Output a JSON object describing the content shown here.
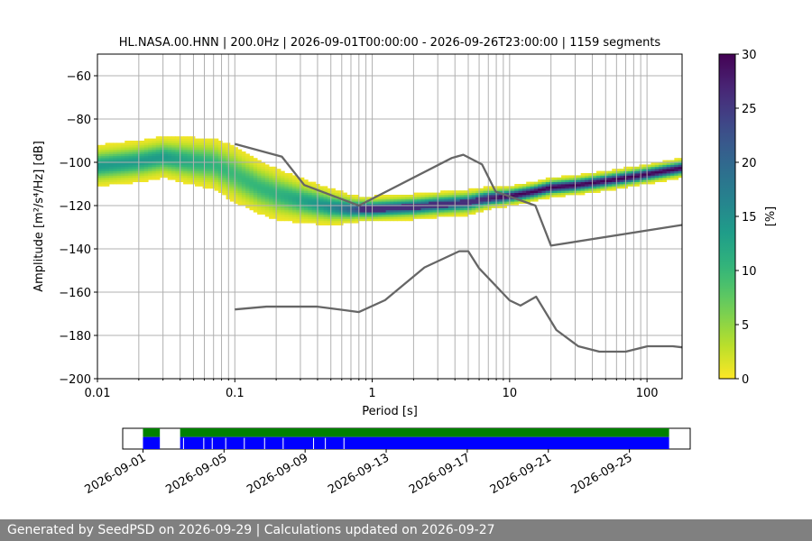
{
  "chart_data": {
    "type": "heatmap",
    "title": "HL.NASA.00.HNN | 200.0Hz | 2026-09-01T00:00:00 - 2026-09-26T23:00:00 | 1159 segments",
    "xlabel": "Period [s]",
    "ylabel_prefix": "Amplitude [",
    "ylabel_unit_tex": "m²/s⁴/Hz",
    "ylabel_suffix": "] [dB]",
    "x_scale": "log",
    "xlim": [
      0.01,
      180
    ],
    "ylim": [
      -200,
      -50
    ],
    "grid": true,
    "x_ticks": [
      {
        "v": 0.01,
        "label": "0.01"
      },
      {
        "v": 0.1,
        "label": "0.1"
      },
      {
        "v": 1,
        "label": "1"
      },
      {
        "v": 10,
        "label": "10"
      },
      {
        "v": 100,
        "label": "100"
      }
    ],
    "y_ticks": [
      {
        "v": -60,
        "label": "−60"
      },
      {
        "v": -80,
        "label": "−80"
      },
      {
        "v": -100,
        "label": "−100"
      },
      {
        "v": -120,
        "label": "−120"
      },
      {
        "v": -140,
        "label": "−140"
      },
      {
        "v": -160,
        "label": "−160"
      },
      {
        "v": -180,
        "label": "−180"
      },
      {
        "v": -200,
        "label": "−200"
      }
    ],
    "colorbar": {
      "label": "[%]",
      "range": [
        0,
        30
      ],
      "ticks": [
        {
          "v": 0,
          "label": "0"
        },
        {
          "v": 5,
          "label": "5"
        },
        {
          "v": 10,
          "label": "10"
        },
        {
          "v": 15,
          "label": "15"
        },
        {
          "v": 20,
          "label": "20"
        },
        {
          "v": 25,
          "label": "25"
        },
        {
          "v": 30,
          "label": "30"
        }
      ],
      "colormap": "viridis_r"
    },
    "psd_mode": [
      [
        0.01,
        -102
      ],
      [
        0.02,
        -100
      ],
      [
        0.03,
        -98
      ],
      [
        0.05,
        -100
      ],
      [
        0.07,
        -101
      ],
      [
        0.1,
        -106
      ],
      [
        0.15,
        -112
      ],
      [
        0.2,
        -115
      ],
      [
        0.3,
        -118
      ],
      [
        0.5,
        -121
      ],
      [
        0.7,
        -122
      ],
      [
        1,
        -122
      ],
      [
        2,
        -121
      ],
      [
        3,
        -120
      ],
      [
        5,
        -119
      ],
      [
        7,
        -117
      ],
      [
        10,
        -116
      ],
      [
        15,
        -114
      ],
      [
        20,
        -112
      ],
      [
        30,
        -111
      ],
      [
        50,
        -109
      ],
      [
        80,
        -107
      ],
      [
        120,
        -105
      ],
      [
        180,
        -103
      ]
    ],
    "psd_spread": [
      [
        0.01,
        7
      ],
      [
        0.03,
        7
      ],
      [
        0.07,
        9
      ],
      [
        0.1,
        10
      ],
      [
        0.2,
        9
      ],
      [
        0.5,
        6
      ],
      [
        0.8,
        4
      ],
      [
        1,
        4
      ],
      [
        2,
        4
      ],
      [
        5,
        4
      ],
      [
        10,
        3
      ],
      [
        30,
        3
      ],
      [
        100,
        3
      ],
      [
        180,
        3
      ]
    ],
    "high_noise_model": {
      "name": "NHNM",
      "points": [
        [
          0.1,
          -91.5
        ],
        [
          0.22,
          -97.4
        ],
        [
          0.32,
          -110.5
        ],
        [
          0.8,
          -120
        ],
        [
          3.8,
          -98
        ],
        [
          4.6,
          -96.5
        ],
        [
          6.3,
          -101
        ],
        [
          7.9,
          -113.5
        ],
        [
          15.4,
          -120
        ],
        [
          20,
          -138.5
        ],
        [
          354.8,
          -126
        ]
      ]
    },
    "low_noise_model": {
      "name": "NLNM",
      "points": [
        [
          0.1,
          -168
        ],
        [
          0.17,
          -166.7
        ],
        [
          0.4,
          -166.7
        ],
        [
          0.8,
          -169.2
        ],
        [
          1.24,
          -163.7
        ],
        [
          2.4,
          -148.6
        ],
        [
          4.3,
          -141.1
        ],
        [
          5,
          -141.1
        ],
        [
          6,
          -149
        ],
        [
          10,
          -163.8
        ],
        [
          12,
          -166.2
        ],
        [
          15.6,
          -162.1
        ],
        [
          21.9,
          -177.5
        ],
        [
          31.6,
          -185
        ],
        [
          45,
          -187.5
        ],
        [
          70,
          -187.5
        ],
        [
          101,
          -185
        ],
        [
          154,
          -185
        ],
        [
          180,
          -185.5
        ]
      ]
    },
    "timeline": {
      "x_range": [
        "2026-08-31",
        "2026-09-28"
      ],
      "ticks": [
        "2026-09-01",
        "2026-09-05",
        "2026-09-09",
        "2026-09-13",
        "2026-09-17",
        "2026-09-21",
        "2026-09-25"
      ],
      "data_intervals": [
        [
          "2026-09-01",
          "2026-09-01T20:00"
        ],
        [
          "2026-09-02T20:00",
          "2026-09-26T23:00"
        ]
      ],
      "gaps": [
        "2026-09-03",
        "2026-09-04",
        "2026-09-04T10:00",
        "2026-09-05T02:00",
        "2026-09-06T00:00",
        "2026-09-07T00:00",
        "2026-09-07T22:00",
        "2026-09-09T10:00",
        "2026-09-10T00:00",
        "2026-09-10T22:00"
      ],
      "colors": {
        "coverage": "#008000",
        "data": "#0000ff"
      }
    }
  },
  "footer": {
    "text": "Generated by SeedPSD on 2026-09-29 | Calculations updated on 2026-09-27"
  }
}
